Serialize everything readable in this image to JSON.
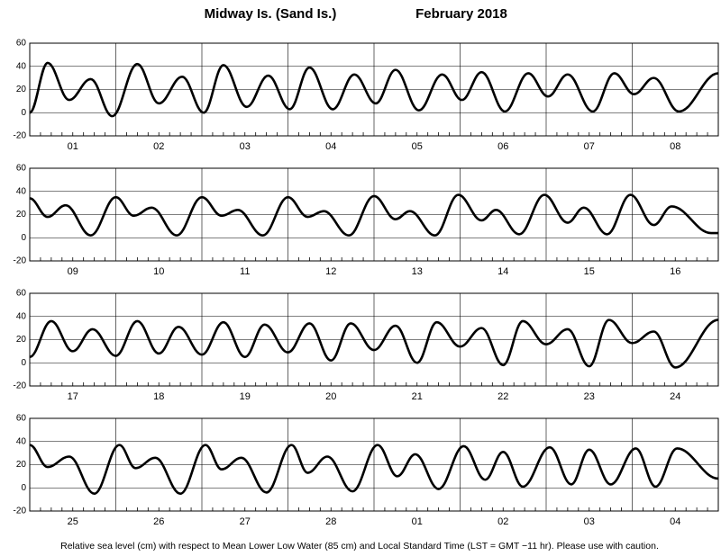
{
  "title": "Midway Is. (Sand Is.)",
  "subtitle": "February   2018",
  "note": "Relative sea level (cm) with respect to Mean Lower Low Water (85 cm) and Local Standard Time (LST = GMT −11 hr). Please use with caution.",
  "chart_data": [
    {
      "type": "line",
      "color": "#000000",
      "days": [
        "01",
        "02",
        "03",
        "04",
        "05",
        "06",
        "07",
        "08"
      ],
      "xlim": [
        0,
        192
      ],
      "ylim": [
        -20,
        60
      ],
      "yticks": [
        -20,
        0,
        20,
        40,
        60
      ],
      "x": [
        0,
        5,
        11,
        17,
        23,
        30,
        36,
        42.5,
        48.5,
        54,
        60.5,
        66.5,
        72.5,
        78,
        84.5,
        90.5,
        96.5,
        102,
        108.5,
        115,
        120.5,
        126,
        132.5,
        139,
        144.5,
        150,
        157,
        163,
        168.5,
        174,
        181,
        192
      ],
      "values": [
        0,
        43,
        11,
        29,
        -3,
        42,
        8,
        31,
        0,
        41,
        5,
        32,
        3,
        39,
        3,
        33,
        8,
        37,
        2,
        33,
        11,
        35,
        1,
        34,
        14,
        33,
        1,
        34,
        16,
        30,
        1,
        34
      ]
    },
    {
      "type": "line",
      "color": "#000000",
      "days": [
        "09",
        "10",
        "11",
        "12",
        "13",
        "14",
        "15",
        "16"
      ],
      "xlim": [
        0,
        192
      ],
      "ylim": [
        -20,
        60
      ],
      "yticks": [
        -20,
        0,
        20,
        40,
        60
      ],
      "x": [
        0,
        5,
        10,
        17,
        24,
        29,
        34,
        41,
        48,
        53.5,
        58,
        65,
        72,
        77.5,
        82,
        89,
        96,
        102,
        106,
        113,
        119.5,
        126,
        130,
        136.5,
        143.5,
        150,
        154.5,
        161,
        167.5,
        174,
        179,
        190,
        192
      ],
      "values": [
        34,
        18,
        28,
        2,
        35,
        19,
        26,
        2,
        35,
        19,
        24,
        2,
        35,
        18,
        23,
        2,
        36,
        16,
        23,
        2,
        37,
        15,
        24,
        3,
        37,
        13,
        26,
        3,
        37,
        11,
        27,
        4,
        4
      ]
    },
    {
      "type": "line",
      "color": "#000000",
      "days": [
        "17",
        "18",
        "19",
        "20",
        "21",
        "22",
        "23",
        "24"
      ],
      "xlim": [
        0,
        192
      ],
      "ylim": [
        -20,
        60
      ],
      "yticks": [
        -20,
        0,
        20,
        40,
        60
      ],
      "x": [
        0,
        6,
        12,
        17.5,
        24,
        30,
        36,
        41.5,
        48,
        54,
        60,
        65.5,
        72,
        78,
        84,
        89.5,
        96,
        102,
        108,
        113.5,
        120,
        126,
        132,
        137.5,
        144,
        150,
        156,
        161.5,
        168,
        174,
        180,
        192
      ],
      "values": [
        5,
        36,
        10,
        29,
        6,
        36,
        8,
        31,
        7,
        35,
        5,
        33,
        9,
        34,
        2,
        34,
        11,
        32,
        0,
        35,
        14,
        30,
        -2,
        36,
        16,
        29,
        -3,
        37,
        17,
        27,
        -4,
        37
      ]
    },
    {
      "type": "line",
      "color": "#000000",
      "days": [
        "25",
        "26",
        "27",
        "28",
        "01",
        "02",
        "03",
        "04"
      ],
      "xlim": [
        0,
        192
      ],
      "ylim": [
        -20,
        60
      ],
      "yticks": [
        -20,
        0,
        20,
        40,
        60
      ],
      "x": [
        0,
        5,
        11,
        18,
        25,
        29.5,
        35,
        42,
        49,
        53.5,
        59,
        66,
        73,
        77.5,
        83,
        90,
        97,
        102.5,
        107.5,
        114,
        121,
        127,
        132,
        137.5,
        145,
        151,
        156,
        162,
        169,
        174.5,
        180.5,
        192
      ],
      "values": [
        37,
        18,
        27,
        -5,
        37,
        17,
        26,
        -5,
        37,
        16,
        26,
        -4,
        37,
        13,
        27,
        -3,
        37,
        10,
        29,
        -1,
        36,
        7,
        31,
        1,
        35,
        3,
        33,
        3,
        34,
        1,
        34,
        8
      ]
    }
  ]
}
